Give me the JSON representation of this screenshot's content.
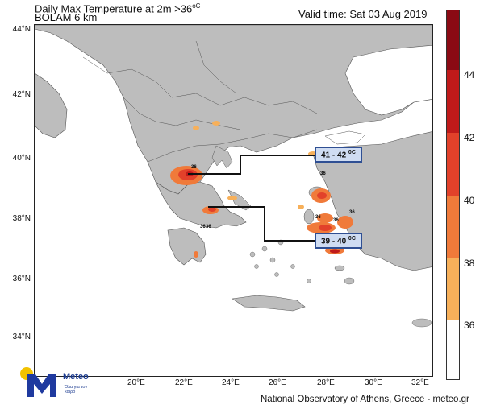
{
  "header": {
    "title": "Daily Max Temperature at 2m >36",
    "title_unit": "oC",
    "model": "BOLAM 6 km",
    "valid_time": "Valid time: Sat 03 Aug 2019"
  },
  "map": {
    "lat_labels": [
      "44°N",
      "42°N",
      "40°N",
      "38°N",
      "36°N",
      "34°N"
    ],
    "lon_labels": [
      "20°E",
      "22°E",
      "24°E",
      "26°E",
      "28°E",
      "30°E",
      "32°E"
    ],
    "contour_labels": [
      "36",
      "36",
      "36",
      "36",
      "36",
      "36",
      "36"
    ],
    "callouts": {
      "north": "41 - 42",
      "south": "39 - 40",
      "unit": "0C"
    }
  },
  "colorbar": {
    "levels": [
      "44",
      "42",
      "40",
      "38",
      "36"
    ],
    "colors": [
      "#8b0a14",
      "#c01a1a",
      "#e2412a",
      "#f07a3a",
      "#f7b05a",
      "#ffffff"
    ]
  },
  "branding": {
    "logo_name": "Meteo",
    "logo_tagline": "Όλα για τον καιρό",
    "colors": {
      "blue": "#1f3a9f",
      "yellow": "#f2c200"
    }
  },
  "footer": {
    "credit": "National Observatory of Athens, Greece - meteo.gr"
  }
}
